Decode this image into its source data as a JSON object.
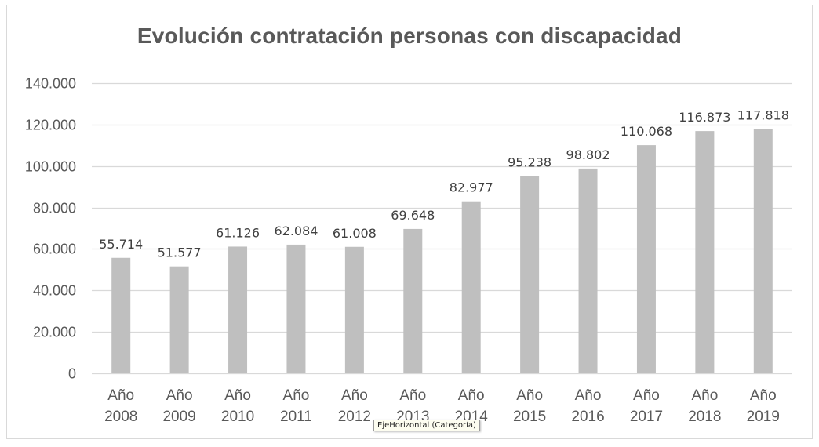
{
  "chart_data": {
    "type": "bar",
    "title": "Evolución contratación personas con discapacidad",
    "categories": [
      [
        "Año",
        "2008"
      ],
      [
        "Año",
        "2009"
      ],
      [
        "Año",
        "2010"
      ],
      [
        "Año",
        "2011"
      ],
      [
        "Año",
        "2012"
      ],
      [
        "Año",
        "2013"
      ],
      [
        "Año",
        "2014"
      ],
      [
        "Año",
        "2015"
      ],
      [
        "Año",
        "2016"
      ],
      [
        "Año",
        "2017"
      ],
      [
        "Año",
        "2018"
      ],
      [
        "Año",
        "2019"
      ]
    ],
    "values": [
      55714,
      51577,
      61126,
      62084,
      61008,
      69648,
      82977,
      95238,
      98802,
      110068,
      116873,
      117818
    ],
    "data_labels": [
      "55.714",
      "51.577",
      "61.126",
      "62.084",
      "61.008",
      "69.648",
      "82.977",
      "95.238",
      "98.802",
      "110.068",
      "116.873",
      "117.818"
    ],
    "ylim": [
      0,
      140000
    ],
    "yticks": [
      0,
      20000,
      40000,
      60000,
      80000,
      100000,
      120000,
      140000
    ],
    "ytick_labels": [
      "0",
      "20.000",
      "40.000",
      "60.000",
      "80.000",
      "100.000",
      "120.000",
      "140.000"
    ],
    "grid": true,
    "legend": "none",
    "bar_color": "#bfbfbf",
    "gridline_color": "#d9d9d9",
    "text_color": "#595959"
  },
  "tooltip": {
    "text": "EjeHorizontal (Categoría)"
  }
}
